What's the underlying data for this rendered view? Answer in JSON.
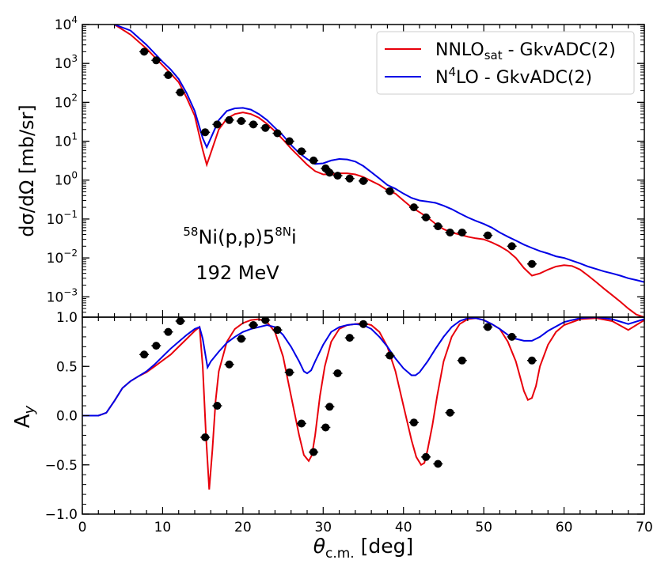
{
  "chart_data": [
    {
      "type": "line",
      "panel": "top",
      "ylabel": "dσ/dΩ [mb/sr]",
      "yscale": "log",
      "ylim": [
        0.0003,
        10000
      ],
      "xlim": [
        0,
        70
      ],
      "ytick_labels": [
        "10^-3",
        "10^-2",
        "10^-1",
        "10^0",
        "10^1",
        "10^2",
        "10^3",
        "10^4"
      ],
      "annotation_line1": "58Ni(p,p)58Ni",
      "annotation_line2": "192 MeV",
      "legend_placement": "top-right",
      "series": [
        {
          "name": "NNLOsat - GkvADC(2)",
          "color": "#e8000b",
          "x": [
            4,
            6,
            8,
            10,
            11,
            12,
            13,
            14,
            15,
            15.5,
            16,
            17,
            18,
            19,
            20,
            21,
            22,
            23,
            24,
            25,
            26,
            27,
            28,
            29,
            30,
            31,
            32,
            33,
            34,
            35,
            36,
            37,
            38,
            39,
            40,
            41,
            42,
            43,
            44,
            45,
            46,
            47,
            48,
            49,
            50,
            51,
            52,
            53,
            54,
            55,
            56,
            57,
            58,
            59,
            60,
            61,
            62,
            63,
            64,
            65,
            66,
            67,
            68,
            69,
            70
          ],
          "y": [
            10000,
            5500,
            2400,
            900,
            550,
            330,
            130,
            45,
            6,
            2.5,
            5,
            20,
            38,
            50,
            55,
            50,
            40,
            28,
            18,
            11,
            6.5,
            4,
            2.5,
            1.7,
            1.4,
            1.4,
            1.5,
            1.5,
            1.4,
            1.2,
            0.95,
            0.75,
            0.55,
            0.45,
            0.3,
            0.2,
            0.15,
            0.11,
            0.075,
            0.055,
            0.045,
            0.04,
            0.035,
            0.032,
            0.03,
            0.025,
            0.02,
            0.015,
            0.01,
            0.0055,
            0.0035,
            0.004,
            0.005,
            0.006,
            0.0065,
            0.0062,
            0.005,
            0.0035,
            0.0024,
            0.0016,
            0.0011,
            0.00075,
            0.0005,
            0.00035,
            0.0003
          ]
        },
        {
          "name": "N4LO - GkvADC(2)",
          "color": "#0000e6",
          "x": [
            4,
            6,
            8,
            10,
            11,
            12,
            13,
            14,
            15,
            15.5,
            16,
            17,
            18,
            19,
            20,
            21,
            22,
            23,
            24,
            25,
            26,
            27,
            28,
            29,
            30,
            31,
            32,
            33,
            34,
            35,
            36,
            37,
            38,
            39,
            40,
            41,
            42,
            43,
            44,
            45,
            46,
            47,
            48,
            49,
            50,
            51,
            52,
            53,
            54,
            55,
            56,
            57,
            58,
            59,
            60,
            61,
            62,
            63,
            64,
            65,
            66,
            67,
            68,
            69,
            70
          ],
          "y": [
            10000,
            7000,
            3000,
            1100,
            700,
            400,
            170,
            60,
            12,
            7,
            12,
            35,
            60,
            70,
            72,
            65,
            50,
            35,
            22,
            14,
            8,
            5,
            3.5,
            2.6,
            2.7,
            3.2,
            3.5,
            3.4,
            3,
            2.3,
            1.6,
            1.1,
            0.75,
            0.6,
            0.45,
            0.35,
            0.3,
            0.28,
            0.26,
            0.22,
            0.18,
            0.14,
            0.11,
            0.09,
            0.075,
            0.06,
            0.045,
            0.035,
            0.028,
            0.022,
            0.018,
            0.015,
            0.013,
            0.011,
            0.01,
            0.0085,
            0.0072,
            0.006,
            0.0052,
            0.0045,
            0.004,
            0.0035,
            0.003,
            0.0027,
            0.0024
          ]
        },
        {
          "name": "",
          "kind": "scatter",
          "color": "#000000",
          "x": [
            7.7,
            9.2,
            10.7,
            12.2,
            15.3,
            16.8,
            18.3,
            19.8,
            21.3,
            22.8,
            24.3,
            25.8,
            27.3,
            28.8,
            30.3,
            30.8,
            31.8,
            33.3,
            35.0,
            38.3,
            41.3,
            42.8,
            44.3,
            45.8,
            47.3,
            50.5,
            53.5,
            56.0
          ],
          "y": [
            2000,
            1200,
            500,
            180,
            17,
            27,
            35,
            33,
            27,
            22,
            16,
            10,
            5.5,
            3.2,
            2.0,
            1.55,
            1.3,
            1.1,
            0.95,
            0.52,
            0.2,
            0.11,
            0.065,
            0.045,
            0.045,
            0.038,
            0.02,
            0.007
          ]
        }
      ]
    },
    {
      "type": "line",
      "panel": "bottom",
      "xlabel": "θc.m. [deg]",
      "ylabel": "Ay",
      "ylim": [
        -1.0,
        1.0
      ],
      "xlim": [
        0,
        70
      ],
      "xtick_labels": [
        "0",
        "10",
        "20",
        "30",
        "40",
        "50",
        "60",
        "70"
      ],
      "ytick_labels": [
        "−1.0",
        "−0.5",
        "0.0",
        "0.5",
        "1.0"
      ],
      "series": [
        {
          "name": "NNLOsat - GkvADC(2)",
          "color": "#e8000b",
          "x": [
            0,
            2,
            3,
            4,
            5,
            6,
            7,
            8,
            9,
            10,
            11,
            12,
            13,
            14,
            14.6,
            15.0,
            15.4,
            15.8,
            16.2,
            16.6,
            17,
            18,
            19,
            20,
            21,
            22,
            23,
            24,
            25,
            26,
            27,
            27.6,
            28.2,
            28.6,
            29.0,
            29.6,
            30.2,
            31,
            32,
            33,
            34,
            35,
            36,
            37,
            38,
            39,
            40,
            41,
            41.6,
            42.2,
            42.6,
            43.0,
            43.6,
            44.2,
            45,
            46,
            47,
            48,
            49,
            50,
            51,
            52,
            53,
            54,
            54.5,
            55,
            55.5,
            56,
            56.5,
            57,
            58,
            59,
            60,
            62,
            64,
            66,
            68,
            70
          ],
          "y": [
            0.0,
            0.0,
            0.03,
            0.15,
            0.28,
            0.35,
            0.4,
            0.44,
            0.5,
            0.56,
            0.62,
            0.7,
            0.78,
            0.86,
            0.9,
            0.5,
            -0.2,
            -0.75,
            -0.35,
            0.15,
            0.45,
            0.75,
            0.88,
            0.94,
            0.97,
            0.98,
            0.95,
            0.85,
            0.6,
            0.2,
            -0.2,
            -0.4,
            -0.46,
            -0.4,
            -0.2,
            0.2,
            0.5,
            0.75,
            0.88,
            0.92,
            0.93,
            0.94,
            0.92,
            0.85,
            0.7,
            0.45,
            0.1,
            -0.25,
            -0.42,
            -0.5,
            -0.48,
            -0.35,
            -0.1,
            0.2,
            0.55,
            0.8,
            0.93,
            0.98,
            0.99,
            0.97,
            0.93,
            0.88,
            0.75,
            0.55,
            0.4,
            0.25,
            0.16,
            0.18,
            0.3,
            0.5,
            0.72,
            0.85,
            0.92,
            0.98,
            0.99,
            0.96,
            0.87,
            0.97
          ]
        },
        {
          "name": "N4LO - GkvADC(2)",
          "color": "#0000e6",
          "x": [
            0,
            2,
            3,
            4,
            5,
            6,
            7,
            8,
            9,
            10,
            11,
            12,
            13,
            14,
            14.6,
            15.0,
            15.6,
            16,
            17,
            18,
            19,
            20,
            21,
            22,
            23,
            24,
            25,
            26,
            27,
            27.6,
            28,
            28.5,
            29,
            30,
            31,
            32,
            33,
            34,
            35,
            36,
            37,
            38,
            39,
            40,
            41,
            41.5,
            42,
            43,
            44,
            45,
            46,
            47,
            48,
            49,
            50,
            51,
            52,
            53,
            54,
            55,
            56,
            57,
            58,
            60,
            62,
            64,
            66,
            68,
            70
          ],
          "y": [
            0.0,
            0.0,
            0.03,
            0.15,
            0.28,
            0.35,
            0.4,
            0.45,
            0.52,
            0.6,
            0.68,
            0.75,
            0.82,
            0.88,
            0.9,
            0.78,
            0.49,
            0.55,
            0.65,
            0.74,
            0.8,
            0.85,
            0.88,
            0.9,
            0.92,
            0.9,
            0.82,
            0.7,
            0.55,
            0.45,
            0.43,
            0.46,
            0.55,
            0.72,
            0.85,
            0.9,
            0.92,
            0.93,
            0.92,
            0.88,
            0.8,
            0.7,
            0.58,
            0.48,
            0.41,
            0.41,
            0.44,
            0.55,
            0.68,
            0.8,
            0.9,
            0.96,
            0.99,
            0.99,
            0.97,
            0.93,
            0.88,
            0.82,
            0.78,
            0.76,
            0.76,
            0.8,
            0.86,
            0.95,
            0.99,
            1.0,
            0.98,
            0.93,
            0.98
          ]
        },
        {
          "name": "",
          "kind": "scatter",
          "color": "#000000",
          "x": [
            7.7,
            9.2,
            10.7,
            12.2,
            15.3,
            16.8,
            18.3,
            19.8,
            21.3,
            22.8,
            24.3,
            25.8,
            27.3,
            28.8,
            30.3,
            30.8,
            31.8,
            33.3,
            35.0,
            38.3,
            41.3,
            42.8,
            44.3,
            45.8,
            47.3,
            50.5,
            53.5,
            56.0
          ],
          "y": [
            0.62,
            0.71,
            0.85,
            0.96,
            -0.22,
            0.1,
            0.52,
            0.78,
            0.92,
            0.97,
            0.87,
            0.44,
            -0.08,
            -0.37,
            -0.12,
            0.09,
            0.43,
            0.79,
            0.93,
            0.61,
            -0.07,
            -0.42,
            -0.49,
            0.03,
            0.56,
            0.9,
            0.8,
            0.56
          ]
        }
      ]
    }
  ]
}
